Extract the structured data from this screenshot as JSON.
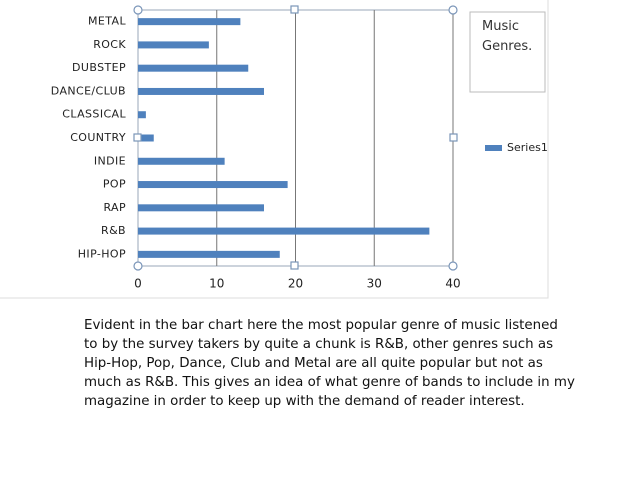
{
  "chart_data": {
    "type": "barh",
    "title": "Music Genres.",
    "categories": [
      "METAL",
      "ROCK",
      "DUBSTEP",
      "DANCE/CLUB",
      "CLASSICAL",
      "COUNTRY",
      "INDIE",
      "POP",
      "RAP",
      "R&B",
      "HIP-HOP"
    ],
    "series": [
      {
        "name": "Series1",
        "color": "#4f81bd",
        "values": [
          13,
          9,
          14,
          16,
          1,
          2,
          11,
          19,
          16,
          37,
          18
        ]
      }
    ],
    "xlim": [
      0,
      40
    ],
    "xticks": [
      0,
      10,
      20,
      30,
      40
    ],
    "grid": true
  },
  "caption": {
    "lines": [
      "Evident in the bar chart here the most popular genre of music listened",
      "to by the survey takers by quite a chunk is R&B, other genres such as",
      "Hip-Hop, Pop, Dance, Club and Metal are all quite popular but not as",
      "much as R&B. This gives an idea of what genre of bands to include in my",
      "magazine in order to keep up with the demand of reader interest."
    ]
  }
}
